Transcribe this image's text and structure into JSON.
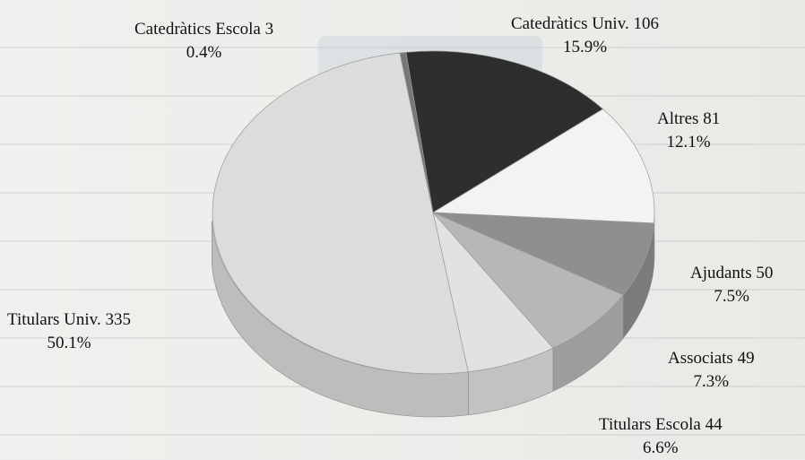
{
  "chart_data": {
    "type": "pie",
    "title": "",
    "style": "3d-tilted",
    "slices": [
      {
        "label": "Catedràtics Univ.",
        "value": 106,
        "percent": "15.9%",
        "color": "#2e2e2e"
      },
      {
        "label": "Altres",
        "value": 81,
        "percent": "12.1%",
        "color": "#f3f3f1"
      },
      {
        "label": "Ajudants",
        "value": 50,
        "percent": "7.5%",
        "color": "#8f8f8f"
      },
      {
        "label": "Associats",
        "value": 49,
        "percent": "7.3%",
        "color": "#b7b7b7"
      },
      {
        "label": "Titulars Escola",
        "value": 44,
        "percent": "6.6%",
        "color": "#e2e2e0"
      },
      {
        "label": "Titulars Univ.",
        "value": 335,
        "percent": "50.1%",
        "color": "#dcdcda"
      },
      {
        "label": "Catedràtics Escola",
        "value": 3,
        "percent": "0.4%",
        "color": "#777777"
      }
    ]
  }
}
